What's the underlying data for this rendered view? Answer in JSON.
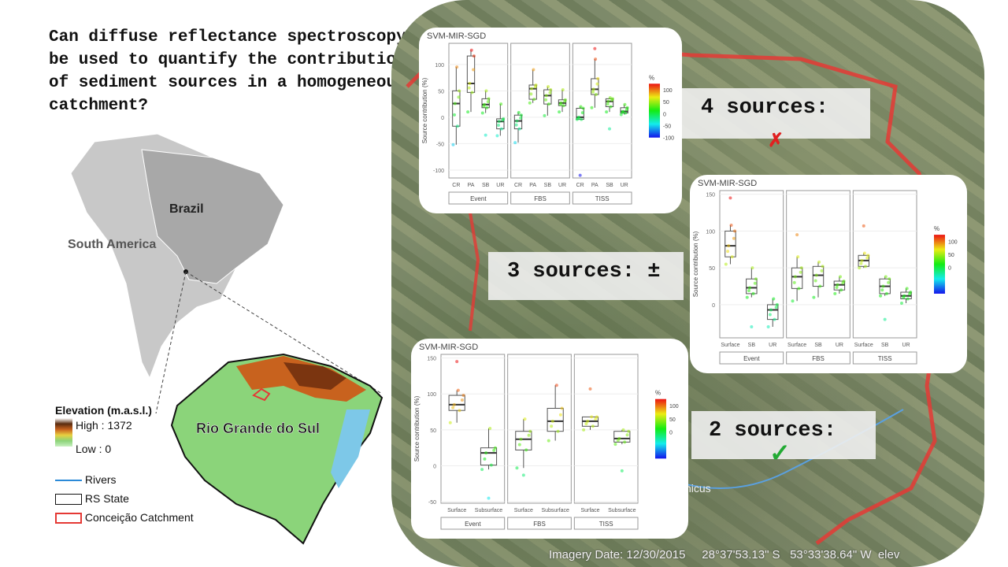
{
  "question": "Can diffuse reflectance spectroscopy be used to quantify the contribution of sediment sources in a homogeneous catchment?",
  "map_labels": {
    "brazil": "Brazil",
    "south_america": "South America",
    "rs": "Rio Grande do Sul"
  },
  "legend": {
    "title": "Elevation (m.a.s.l.)",
    "high": "High : 1372",
    "low": "Low : 0",
    "rivers": "Rivers",
    "rs_state": "RS State",
    "catchment": "Conceição Catchment"
  },
  "imagery": {
    "date": "Imagery Date: 12/30/2015",
    "lat": "28°37'53.13\" S",
    "lon": "53°33'38.64\" W",
    "elev": "elev",
    "town": "nicus"
  },
  "labels": {
    "four": "4 sources:",
    "three": "3 sources: ±",
    "two": "2 sources:",
    "four_mark": "✗",
    "two_mark": "✓"
  },
  "colors": {
    "fail": "#e02020",
    "pass": "#22aa33",
    "catchment": "#e53935"
  },
  "chart_data": [
    {
      "type": "box",
      "title": "SVM-MIR-SGD",
      "ylabel": "Source contribution (%)",
      "ylim": [
        -115,
        140
      ],
      "yticks": [
        -100,
        -50,
        0,
        50,
        100
      ],
      "facets": [
        "Event",
        "FBS",
        "TISS"
      ],
      "categories": [
        "CR",
        "PA",
        "SB",
        "UR"
      ],
      "legend": {
        "title": "%",
        "ticks": [
          100,
          50,
          0,
          -50,
          -100
        ]
      },
      "stats": [
        [
          [
            -52,
            -17,
            26,
            50,
            95
          ],
          [
            10,
            47,
            64,
            116,
            127
          ],
          [
            8,
            18,
            24,
            35,
            50
          ],
          [
            -35,
            -22,
            -8,
            -3,
            25
          ]
        ],
        [
          [
            -48,
            -22,
            -7,
            4,
            9
          ],
          [
            27,
            34,
            54,
            61,
            90
          ],
          [
            3,
            25,
            41,
            52,
            58
          ],
          [
            10,
            22,
            27,
            33,
            52
          ]
        ],
        [
          [
            -4,
            -4,
            0,
            17,
            20
          ],
          [
            18,
            43,
            53,
            73,
            110
          ],
          [
            10,
            20,
            30,
            35,
            37
          ],
          [
            5,
            8,
            11,
            18,
            24
          ]
        ]
      ],
      "outliers": [
        [
          [],
          [],
          [
            -34
          ],
          []
        ],
        [
          [],
          [],
          [],
          []
        ],
        [
          [
            -110
          ],
          [
            130
          ],
          [
            -22
          ],
          []
        ]
      ]
    },
    {
      "type": "box",
      "title": "SVM-MIR-SGD",
      "ylabel": "Source contribution (%)",
      "ylim": [
        -45,
        155
      ],
      "yticks": [
        0,
        50,
        100,
        150
      ],
      "facets": [
        "Event",
        "FBS",
        "TISS"
      ],
      "categories": [
        "Surface",
        "SB",
        "UR"
      ],
      "legend": {
        "title": "%",
        "ticks": [
          100,
          50,
          0
        ]
      },
      "stats": [
        [
          [
            55,
            65,
            80,
            100,
            108
          ],
          [
            10,
            15,
            23,
            35,
            50
          ],
          [
            -30,
            -20,
            -7,
            0,
            8
          ]
        ],
        [
          [
            5,
            22,
            38,
            50,
            65
          ],
          [
            10,
            25,
            40,
            52,
            58
          ],
          [
            15,
            20,
            27,
            32,
            38
          ]
        ],
        [
          [
            50,
            52,
            60,
            67,
            70
          ],
          [
            12,
            15,
            25,
            35,
            38
          ],
          [
            2,
            8,
            12,
            17,
            22
          ]
        ]
      ],
      "outliers": [
        [
          [
            145
          ],
          [
            -30
          ],
          []
        ],
        [
          [
            95
          ],
          [],
          []
        ],
        [
          [
            107
          ],
          [
            -20
          ],
          []
        ]
      ]
    },
    {
      "type": "box",
      "title": "SVM-MIR-SGD",
      "ylabel": "Source contribution (%)",
      "ylim": [
        -52,
        155
      ],
      "yticks": [
        -50,
        0,
        50,
        100,
        150
      ],
      "facets": [
        "Event",
        "FBS",
        "TISS"
      ],
      "categories": [
        "Surface",
        "Subsurface"
      ],
      "legend": {
        "title": "%",
        "ticks": [
          100,
          50,
          0
        ]
      },
      "stats": [
        [
          [
            60,
            77,
            85,
            98,
            105
          ],
          [
            -5,
            1,
            18,
            25,
            52
          ]
        ],
        [
          [
            -3,
            22,
            37,
            48,
            65
          ],
          [
            35,
            48,
            62,
            80,
            112
          ]
        ],
        [
          [
            50,
            55,
            62,
            68,
            68
          ],
          [
            30,
            33,
            38,
            48,
            50
          ]
        ]
      ],
      "outliers": [
        [
          [
            145
          ],
          [
            -45
          ]
        ],
        [
          [
            -13
          ],
          []
        ],
        [
          [
            107
          ],
          [
            -7
          ]
        ]
      ]
    }
  ]
}
